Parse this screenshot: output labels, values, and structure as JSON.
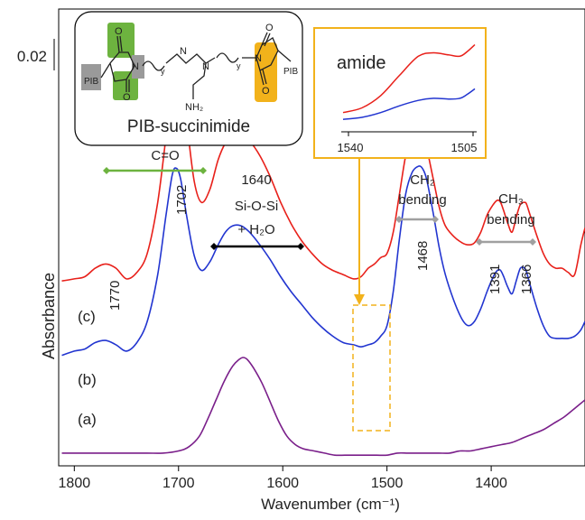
{
  "chart_data": {
    "type": "line",
    "title": "",
    "xlabel": "Wavenumber (cm⁻¹)",
    "ylabel": "Absorbance",
    "x_reversed": true,
    "xlim": [
      1815,
      1310
    ],
    "xticks": [
      1800,
      1700,
      1600,
      1500,
      1400
    ],
    "scale_bar_label": "0.02",
    "series": [
      {
        "name": "(c)",
        "color": "#e8201a",
        "x": [
          1812,
          1800,
          1790,
          1780,
          1770,
          1760,
          1750,
          1740,
          1730,
          1720,
          1712,
          1706,
          1702,
          1698,
          1692,
          1685,
          1678,
          1670,
          1662,
          1655,
          1648,
          1640,
          1632,
          1622,
          1612,
          1602,
          1592,
          1582,
          1572,
          1562,
          1552,
          1542,
          1532,
          1525,
          1518,
          1512,
          1506,
          1500,
          1494,
          1488,
          1482,
          1476,
          1470,
          1466,
          1462,
          1456,
          1450,
          1444,
          1436,
          1428,
          1422,
          1416,
          1410,
          1404,
          1398,
          1394,
          1391,
          1388,
          1384,
          1380,
          1376,
          1372,
          1368,
          1366,
          1362,
          1356,
          1350,
          1344,
          1338,
          1332,
          1326,
          1320,
          1314,
          1310
        ],
        "y": [
          0.015,
          0.016,
          0.017,
          0.021,
          0.023,
          0.021,
          0.016,
          0.019,
          0.028,
          0.052,
          0.083,
          0.108,
          0.114,
          0.11,
          0.089,
          0.062,
          0.052,
          0.058,
          0.072,
          0.08,
          0.084,
          0.084,
          0.081,
          0.074,
          0.064,
          0.052,
          0.042,
          0.034,
          0.028,
          0.023,
          0.02,
          0.018,
          0.016,
          0.017,
          0.021,
          0.023,
          0.026,
          0.028,
          0.038,
          0.056,
          0.074,
          0.084,
          0.087,
          0.085,
          0.078,
          0.064,
          0.05,
          0.041,
          0.036,
          0.033,
          0.032,
          0.033,
          0.038,
          0.046,
          0.051,
          0.053,
          0.052,
          0.048,
          0.042,
          0.038,
          0.045,
          0.051,
          0.052,
          0.051,
          0.045,
          0.036,
          0.028,
          0.023,
          0.021,
          0.021,
          0.019,
          0.018,
          0.032,
          0.04
        ]
      },
      {
        "name": "(b)",
        "color": "#2235d0",
        "x": [
          1812,
          1800,
          1790,
          1780,
          1770,
          1760,
          1750,
          1740,
          1730,
          1720,
          1712,
          1706,
          1702,
          1698,
          1692,
          1685,
          1678,
          1670,
          1662,
          1655,
          1648,
          1640,
          1632,
          1622,
          1612,
          1602,
          1592,
          1582,
          1572,
          1562,
          1552,
          1542,
          1532,
          1525,
          1518,
          1512,
          1506,
          1500,
          1494,
          1488,
          1482,
          1476,
          1470,
          1466,
          1462,
          1456,
          1450,
          1444,
          1436,
          1428,
          1422,
          1416,
          1410,
          1404,
          1398,
          1394,
          1391,
          1388,
          1384,
          1380,
          1376,
          1372,
          1368,
          1366,
          1362,
          1356,
          1350,
          1344,
          1338,
          1332,
          1326,
          1320,
          1314,
          1310
        ],
        "y": [
          -0.02,
          -0.018,
          -0.017,
          -0.014,
          -0.013,
          -0.015,
          -0.018,
          -0.014,
          -0.004,
          0.018,
          0.046,
          0.065,
          0.068,
          0.063,
          0.045,
          0.027,
          0.02,
          0.024,
          0.032,
          0.038,
          0.041,
          0.041,
          0.038,
          0.032,
          0.025,
          0.017,
          0.01,
          0.004,
          -0.002,
          -0.007,
          -0.011,
          -0.014,
          -0.015,
          -0.016,
          -0.015,
          -0.014,
          -0.011,
          -0.006,
          0.01,
          0.035,
          0.056,
          0.066,
          0.069,
          0.068,
          0.063,
          0.048,
          0.031,
          0.018,
          0.006,
          -0.003,
          -0.006,
          -0.004,
          0.002,
          0.01,
          0.017,
          0.02,
          0.02,
          0.017,
          0.012,
          0.009,
          0.015,
          0.021,
          0.021,
          0.019,
          0.012,
          0.002,
          -0.006,
          -0.011,
          -0.012,
          -0.012,
          -0.012,
          -0.011,
          -0.008,
          -0.004
        ]
      },
      {
        "name": "(a)",
        "color": "#7a1f8a",
        "x": [
          1812,
          1790,
          1770,
          1750,
          1730,
          1715,
          1700,
          1690,
          1680,
          1672,
          1664,
          1656,
          1648,
          1642,
          1638,
          1634,
          1628,
          1620,
          1612,
          1604,
          1596,
          1588,
          1580,
          1570,
          1560,
          1550,
          1540,
          1530,
          1520,
          1510,
          1500,
          1490,
          1480,
          1470,
          1460,
          1450,
          1440,
          1430,
          1420,
          1410,
          1400,
          1390,
          1380,
          1370,
          1360,
          1350,
          1340,
          1330,
          1320,
          1310
        ],
        "y": [
          -0.066,
          -0.066,
          -0.066,
          -0.066,
          -0.066,
          -0.066,
          -0.065,
          -0.063,
          -0.058,
          -0.05,
          -0.041,
          -0.032,
          -0.025,
          -0.022,
          -0.021,
          -0.022,
          -0.026,
          -0.033,
          -0.042,
          -0.051,
          -0.058,
          -0.062,
          -0.064,
          -0.065,
          -0.066,
          -0.067,
          -0.067,
          -0.067,
          -0.067,
          -0.067,
          -0.067,
          -0.066,
          -0.066,
          -0.066,
          -0.066,
          -0.066,
          -0.066,
          -0.065,
          -0.065,
          -0.064,
          -0.063,
          -0.062,
          -0.061,
          -0.059,
          -0.057,
          -0.055,
          -0.052,
          -0.049,
          -0.045,
          -0.041
        ]
      }
    ],
    "annotations": [
      {
        "label": "1770",
        "x": 1770
      },
      {
        "label": "1702",
        "x": 1702
      },
      {
        "label": "1640",
        "x": 1640
      },
      {
        "label": "1468",
        "x": 1468
      },
      {
        "label": "1391",
        "x": 1391
      },
      {
        "label": "1366",
        "x": 1366
      }
    ],
    "bands": [
      {
        "label": "C=O",
        "from": 1790,
        "to": 1680,
        "color": "#6db33f"
      },
      {
        "label_line1": "Si-O-Si",
        "label_line2": "+ H₂O",
        "from": 1667,
        "to": 1585,
        "color": "#000000"
      },
      {
        "label": "CH₂",
        "label_sub": "bending",
        "from": 1490,
        "to": 1457,
        "color": "#a0a0a0"
      },
      {
        "label": "CH₃",
        "label_sub": "bending",
        "from": 1420,
        "to": 1362,
        "color": "#a0a0a0"
      }
    ],
    "inset": {
      "title": "amide",
      "xticks": [
        "1540",
        "1505"
      ],
      "border_color": "#f2b21b",
      "highlight_from": 1535,
      "highlight_to": 1498,
      "series": [
        {
          "color": "#e8201a",
          "x": [
            1540,
            1535,
            1530,
            1525,
            1520,
            1516,
            1512,
            1509,
            1507,
            1505
          ],
          "y": [
            0.05,
            0.12,
            0.3,
            0.6,
            0.88,
            0.93,
            0.9,
            0.88,
            0.95,
            1.05
          ]
        },
        {
          "color": "#2235d0",
          "x": [
            1540,
            1535,
            1530,
            1525,
            1520,
            1516,
            1512,
            1509,
            1507,
            1505
          ],
          "y": [
            -0.05,
            -0.02,
            0.05,
            0.15,
            0.23,
            0.26,
            0.25,
            0.26,
            0.32,
            0.4
          ]
        }
      ]
    },
    "structure": {
      "name": "PIB-succinimide",
      "atoms": [
        "N",
        "O",
        "O",
        "PIB",
        "N",
        "N",
        "N",
        "NH₂",
        "O",
        "O",
        "PIB",
        "y",
        "y"
      ]
    }
  }
}
